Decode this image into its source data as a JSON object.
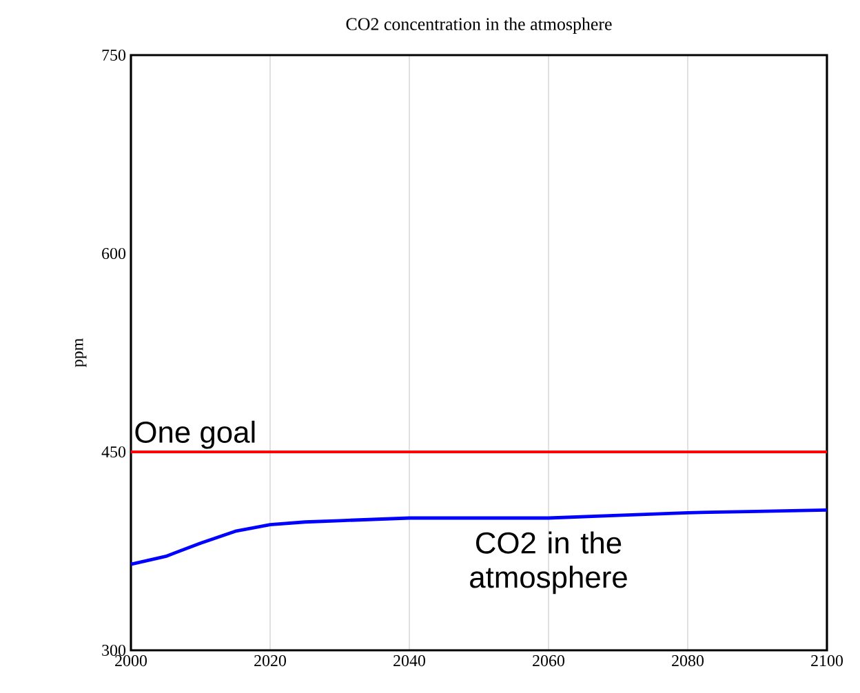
{
  "chart_data": {
    "type": "line",
    "title": "CO2 concentration in the atmosphere",
    "ylabel": "ppm",
    "xlim": [
      2000,
      2100
    ],
    "xticks": [
      2000,
      2020,
      2040,
      2060,
      2080,
      2100
    ],
    "ylim": [
      300,
      750
    ],
    "yticks": [
      300,
      450,
      600,
      750
    ],
    "grid": "x",
    "marker": "none",
    "line_style": "solid",
    "series": [
      {
        "name": "CO2 in the atmosphere",
        "color": "#0000ff",
        "x": [
          2000,
          2005,
          2010,
          2015,
          2020,
          2025,
          2030,
          2040,
          2060,
          2070,
          2080,
          2090,
          2100
        ],
        "values": [
          365,
          371,
          381,
          390,
          395,
          397,
          398,
          400,
          400,
          402,
          404,
          405,
          406
        ]
      }
    ],
    "ref_lines": [
      {
        "axis": "y",
        "value": 450,
        "label": "One goal",
        "color": "#ff0000",
        "line_style": "solid"
      }
    ]
  }
}
